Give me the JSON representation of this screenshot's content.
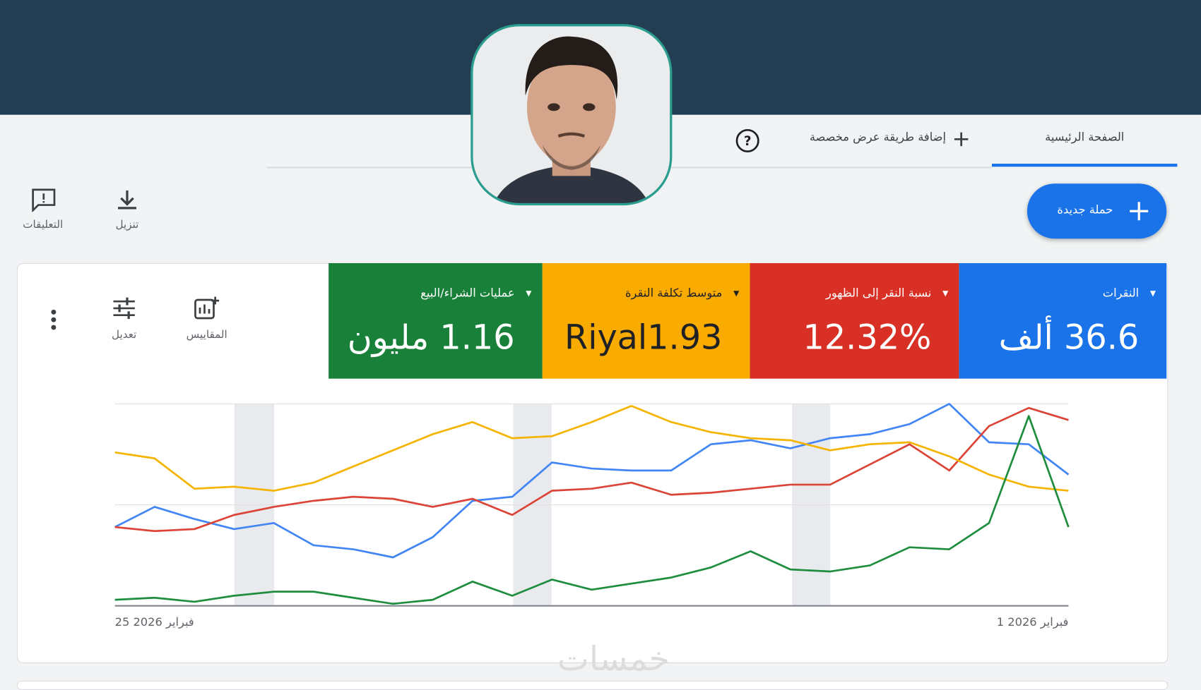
{
  "header": {
    "tabs": [
      "الصفحة الرئيسية",
      "إضافة طريقة عرض مخصصة"
    ]
  },
  "actions": {
    "new_campaign": "حملة جديدة",
    "download": "تنزيل",
    "feedback": "التعليقات"
  },
  "toolbar": {
    "metrics": "المقاييس",
    "edit": "تعديل"
  },
  "watermark": "خمسات",
  "chart_data": {
    "type": "line",
    "categories": [
      "25 فبراير 2026",
      null,
      null,
      null,
      null,
      null,
      null,
      null,
      null,
      null,
      null,
      null,
      null,
      null,
      null,
      null,
      null,
      null,
      null,
      null,
      null,
      null,
      null,
      null,
      "1 فبراير 2026"
    ],
    "ylim": [
      0,
      100
    ],
    "yticks": [
      0,
      50,
      100
    ],
    "grid": true,
    "series": [
      {
        "name": "النقرات",
        "total": "36.6 ألف",
        "color": "#4285f4",
        "values": [
          39,
          49,
          43,
          38,
          41,
          30,
          28,
          24,
          34,
          52,
          54,
          71,
          68,
          67,
          67,
          80,
          82,
          78,
          83,
          85,
          90,
          100,
          81,
          80,
          65
        ]
      },
      {
        "name": "نسبة النقر إلى الظهور",
        "total": "12.32%",
        "color": "#db4437",
        "values": [
          39,
          37,
          38,
          45,
          49,
          52,
          54,
          53,
          49,
          53,
          45,
          57,
          58,
          61,
          55,
          56,
          58,
          60,
          60,
          70,
          80,
          67,
          89,
          98,
          92
        ]
      },
      {
        "name": "متوسط تكلفة النقرة",
        "total": "Riyal1.93",
        "color": "#f4b400",
        "values": [
          76,
          73,
          58,
          59,
          57,
          61,
          69,
          77,
          85,
          91,
          83,
          84,
          91,
          99,
          91,
          86,
          83,
          82,
          77,
          80,
          81,
          74,
          65,
          59,
          57
        ]
      },
      {
        "name": "عمليات الشراء/البيع",
        "total": "1.16 مليون",
        "color": "#1e8e3e",
        "values": [
          3,
          4,
          2,
          5,
          7,
          7,
          4,
          1,
          3,
          12,
          5,
          13,
          8,
          11,
          14,
          19,
          27,
          18,
          17,
          20,
          29,
          28,
          41,
          94,
          39
        ]
      }
    ]
  }
}
